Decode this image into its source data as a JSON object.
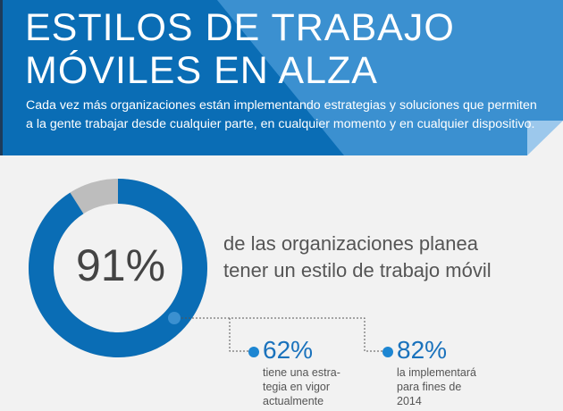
{
  "header": {
    "title_line1": "ESTILOS DE TRABAJO",
    "title_line2": "MÓVILES EN ALZA",
    "subtitle": "Cada vez más organizaciones están implementando estrategias y soluciones que permiten a la gente trabajar desde cualquier parte, en cualquier momento y en cualquier dispositivo."
  },
  "main": {
    "donut_percent": 91,
    "donut_label": "91%",
    "headline_line1": "de las organizaciones planea",
    "headline_line2": "tener un estilo de trabajo móvil",
    "stats": [
      {
        "value": "62%",
        "lines": [
          "tiene una estra-",
          "tegia en vigor",
          "actualmente"
        ]
      },
      {
        "value": "82%",
        "lines": [
          "la implementará",
          "para fines de",
          "2014"
        ]
      }
    ]
  },
  "colors": {
    "primary": "#0a6db5",
    "light_blue": "#3b90d0",
    "gray": "#bdbdbd",
    "background": "#f2f2f2"
  }
}
